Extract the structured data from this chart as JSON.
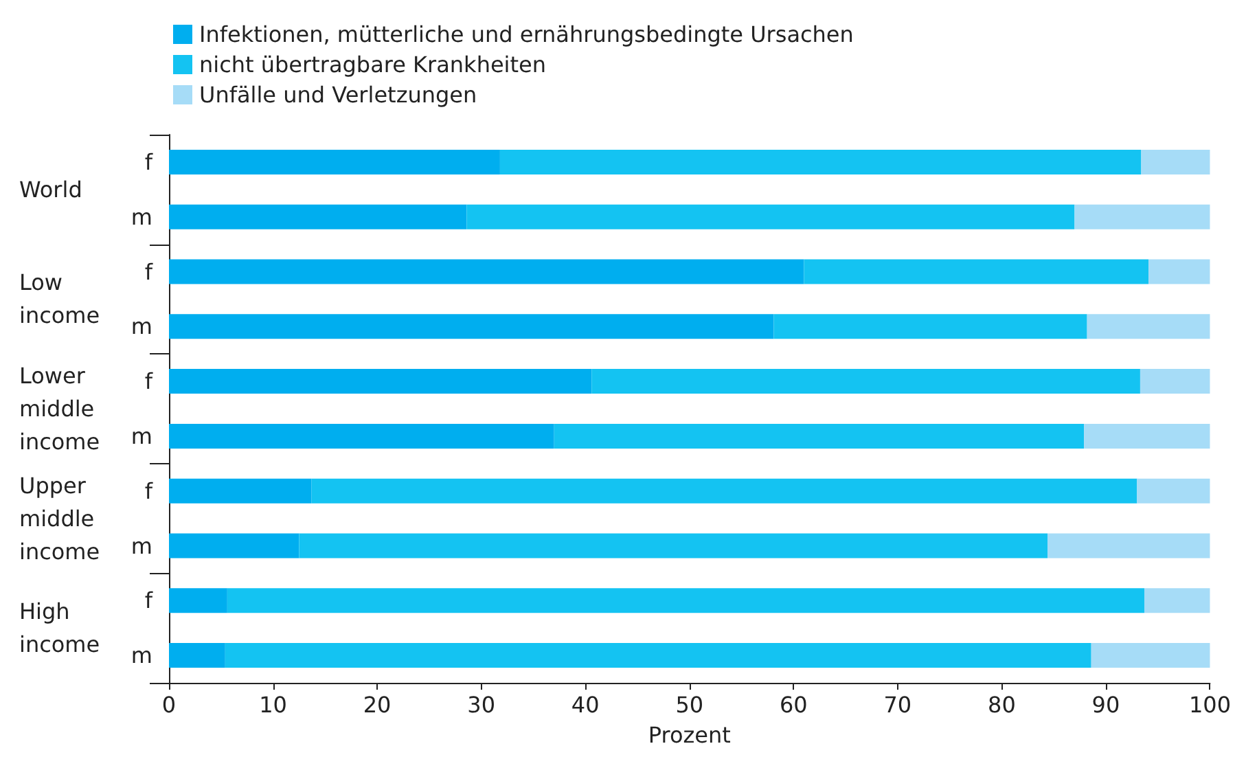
{
  "chart_data": {
    "type": "bar",
    "orientation": "horizontal",
    "stacked": true,
    "xlabel": "Prozent",
    "categories": [
      "f",
      "m",
      "f",
      "m",
      "f",
      "m",
      "f",
      "m",
      "f",
      "m"
    ],
    "annotations": [
      "World",
      "Low income",
      "Lower middle income",
      "Upper middle income",
      "High income"
    ],
    "series": [
      {
        "name": "Infektionen, mütterliche und ernährungsbedingte Ursachen",
        "color": "#00aeef",
        "values": [
          31.8,
          28.6,
          61.0,
          58.1,
          40.6,
          37.0,
          13.7,
          12.5,
          5.6,
          5.4
        ]
      },
      {
        "name": "nicht übertragbare Krankheiten",
        "color": "#14c3f2",
        "values": [
          61.6,
          58.4,
          33.1,
          30.1,
          52.7,
          50.9,
          79.3,
          71.9,
          88.1,
          83.2
        ]
      },
      {
        "name": "Unfälle und Verletzungen",
        "color": "#a6dcf7",
        "values": [
          6.6,
          13.0,
          5.9,
          11.8,
          6.7,
          12.1,
          7.0,
          15.6,
          6.3,
          11.4
        ]
      }
    ],
    "xlim": [
      0,
      100
    ],
    "xticks": [
      0,
      10,
      20,
      30,
      40,
      50,
      60,
      70,
      80,
      90,
      100
    ],
    "grid": false,
    "legend": "top left"
  }
}
